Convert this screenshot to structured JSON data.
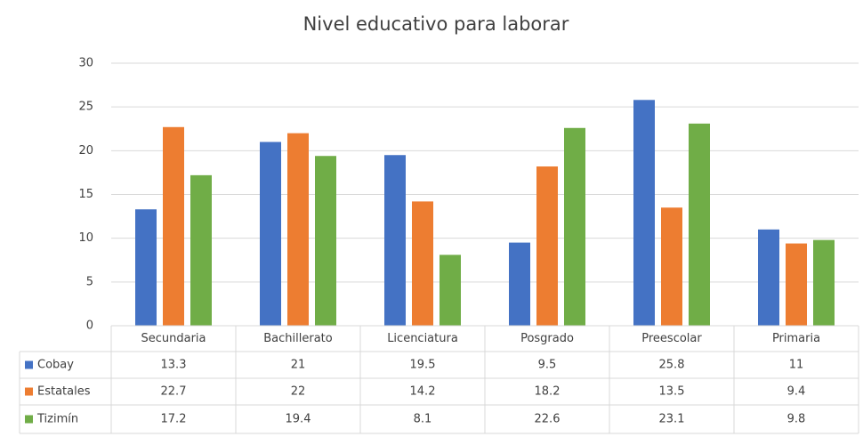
{
  "chart_data": {
    "type": "bar",
    "title": "Nivel educativo para laborar",
    "categories": [
      "Secundaria",
      "Bachillerato",
      "Licenciatura",
      "Posgrado",
      "Preescolar",
      "Primaria"
    ],
    "series": [
      {
        "name": "Cobay",
        "color": "#4472c4",
        "values": [
          13.3,
          21,
          19.5,
          9.5,
          25.8,
          11
        ]
      },
      {
        "name": "Estatales",
        "color": "#ed7d31",
        "values": [
          22.7,
          22,
          14.2,
          18.2,
          13.5,
          9.4
        ]
      },
      {
        "name": "Tizimín",
        "color": "#70ad47",
        "values": [
          17.2,
          19.4,
          8.1,
          22.6,
          23.1,
          9.8
        ]
      }
    ],
    "ylim": [
      0,
      30
    ],
    "yticks": [
      0,
      5,
      10,
      15,
      20,
      25,
      30
    ],
    "grid": true,
    "data_table": true
  }
}
